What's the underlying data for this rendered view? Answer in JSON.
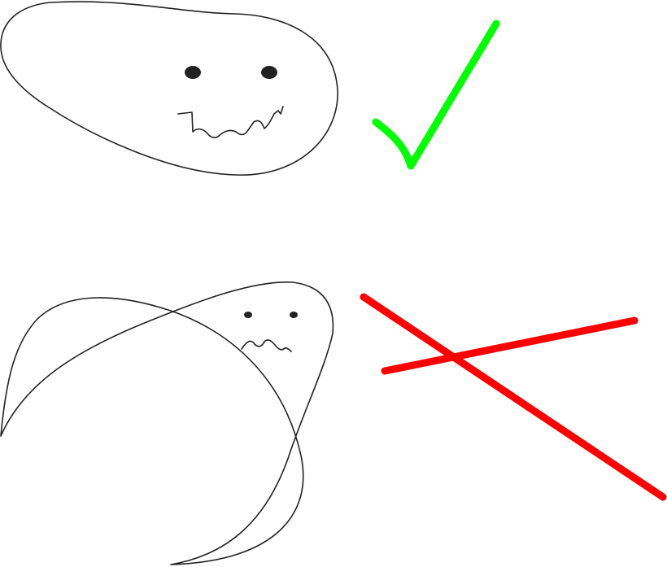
{
  "figures": [
    {
      "id": "good",
      "shape": "closed-smooth-blob",
      "expression": "wavy-mouth",
      "verdict": "correct",
      "mark_icon": "check-mark-icon"
    },
    {
      "id": "bad",
      "shape": "self-intersecting-loop",
      "expression": "wavy-mouth",
      "verdict": "incorrect",
      "mark_icon": "cross-mark-icon"
    }
  ],
  "colors": {
    "background": "#ffffff",
    "outline": "#222222",
    "check": "#00ff00",
    "cross": "#ff0000"
  }
}
